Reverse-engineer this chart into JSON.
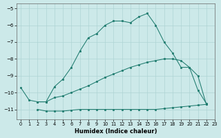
{
  "xlabel": "Humidex (Indice chaleur)",
  "xlim": [
    -0.5,
    23
  ],
  "ylim": [
    -11.6,
    -4.7
  ],
  "yticks": [
    -11,
    -10,
    -9,
    -8,
    -7,
    -6,
    -5
  ],
  "xticks": [
    0,
    1,
    2,
    3,
    4,
    5,
    6,
    7,
    8,
    9,
    10,
    11,
    12,
    13,
    14,
    15,
    16,
    17,
    18,
    19,
    20,
    21,
    22,
    23
  ],
  "bg_color": "#cce9e9",
  "line_color": "#1e7b6e",
  "grid_color": "#aed4d4",
  "curve_flat_x": [
    2,
    3,
    4,
    5,
    6,
    7,
    8,
    9,
    10,
    11,
    12,
    13,
    14,
    15,
    16,
    17,
    18,
    19,
    20,
    21,
    22
  ],
  "curve_flat_y": [
    -11.0,
    -11.1,
    -11.1,
    -11.1,
    -11.05,
    -11.0,
    -11.0,
    -11.0,
    -11.0,
    -11.0,
    -11.0,
    -11.0,
    -11.0,
    -11.0,
    -11.0,
    -10.95,
    -10.9,
    -10.85,
    -10.8,
    -10.75,
    -10.7
  ],
  "curve_mid_x": [
    0,
    1,
    2,
    3,
    4,
    5,
    6,
    7,
    8,
    9,
    10,
    11,
    12,
    13,
    14,
    15,
    16,
    17,
    18,
    19,
    20,
    21,
    22
  ],
  "curve_mid_y": [
    -9.7,
    -10.45,
    -10.55,
    -10.55,
    -10.3,
    -10.2,
    -10.0,
    -9.8,
    -9.6,
    -9.35,
    -9.1,
    -8.9,
    -8.7,
    -8.5,
    -8.35,
    -8.2,
    -8.1,
    -8.0,
    -8.0,
    -8.1,
    -8.5,
    -9.0,
    -10.7
  ],
  "curve_top_x": [
    2,
    3,
    4,
    5,
    6,
    7,
    8,
    9,
    10,
    11,
    12,
    13,
    14,
    15,
    16,
    17,
    18,
    19,
    20,
    21,
    22
  ],
  "curve_top_y": [
    -10.55,
    -10.55,
    -9.65,
    -9.2,
    -8.5,
    -7.55,
    -6.75,
    -6.5,
    -6.0,
    -5.75,
    -5.75,
    -5.85,
    -5.5,
    -5.3,
    -6.0,
    -7.0,
    -7.65,
    -8.5,
    -8.5,
    -9.85,
    -10.65
  ]
}
